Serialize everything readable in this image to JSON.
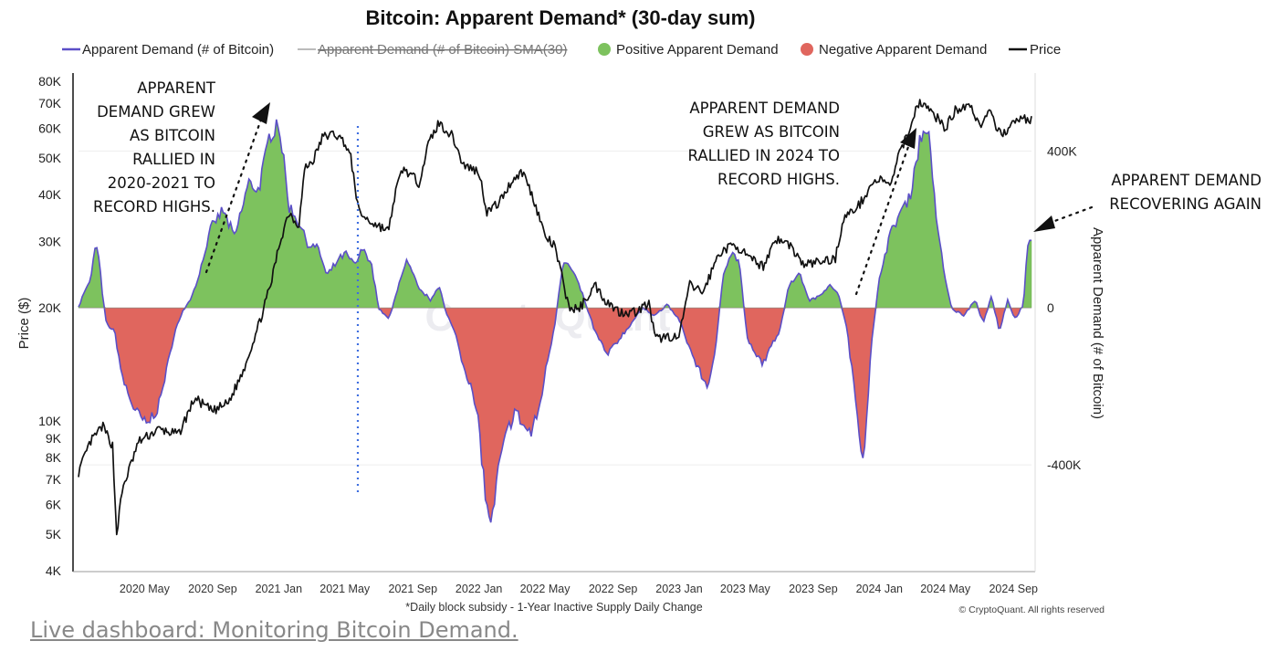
{
  "chart_data": {
    "type": "bar",
    "title": "Bitcoin: Apparent Demand* (30-day sum)",
    "legend": [
      {
        "label": "Apparent Demand (# of Bitcoin)",
        "color": "#5b4fc7",
        "marker": "line"
      },
      {
        "label": "Apparent Demand (# of Bitcoin) SMA(30)",
        "color": "#bbbbbb",
        "marker": "line",
        "hidden": true
      },
      {
        "label": "Positive Apparent Demand",
        "color": "#7dc25e",
        "marker": "dot"
      },
      {
        "label": "Negative Apparent Demand",
        "color": "#e0665e",
        "marker": "dot"
      },
      {
        "label": "Price",
        "color": "#111111",
        "marker": "line"
      }
    ],
    "ylabel_left": "Price ($)",
    "ylabel_right": "Apparent Demand (# of Bitcoin)",
    "y_left_scale": "log",
    "y_left_range": [
      4000,
      80000
    ],
    "y_left_ticks": [
      {
        "value": 80000,
        "label": "80K"
      },
      {
        "value": 70000,
        "label": "70K"
      },
      {
        "value": 60000,
        "label": "60K"
      },
      {
        "value": 50000,
        "label": "50K"
      },
      {
        "value": 40000,
        "label": "40K"
      },
      {
        "value": 30000,
        "label": "30K"
      },
      {
        "value": 20000,
        "label": "20K"
      },
      {
        "value": 10000,
        "label": "10K"
      },
      {
        "value": 9000,
        "label": "9K"
      },
      {
        "value": 8000,
        "label": "8K"
      },
      {
        "value": 7000,
        "label": "7K"
      },
      {
        "value": 6000,
        "label": "6K"
      },
      {
        "value": 5000,
        "label": "5K"
      },
      {
        "value": 4000,
        "label": "4K"
      }
    ],
    "y_right_range": [
      -700000,
      580000
    ],
    "y_right_ticks": [
      {
        "value": 400000,
        "label": "400K"
      },
      {
        "value": 0,
        "label": "0"
      },
      {
        "value": -400000,
        "label": "-400K"
      }
    ],
    "x_start": 2020.0,
    "x_end": 2024.76,
    "x_ticks": [
      {
        "value": 2020.33,
        "label": "2020 May"
      },
      {
        "value": 2020.67,
        "label": "2020 Sep"
      },
      {
        "value": 2021.0,
        "label": "2021 Jan"
      },
      {
        "value": 2021.33,
        "label": "2021 May"
      },
      {
        "value": 2021.67,
        "label": "2021 Sep"
      },
      {
        "value": 2022.0,
        "label": "2022 Jan"
      },
      {
        "value": 2022.33,
        "label": "2022 May"
      },
      {
        "value": 2022.67,
        "label": "2022 Sep"
      },
      {
        "value": 2023.0,
        "label": "2023 Jan"
      },
      {
        "value": 2023.33,
        "label": "2023 May"
      },
      {
        "value": 2023.67,
        "label": "2023 Sep"
      },
      {
        "value": 2024.0,
        "label": "2024 Jan"
      },
      {
        "value": 2024.33,
        "label": "2024 May"
      },
      {
        "value": 2024.67,
        "label": "2024 Sep"
      }
    ],
    "price_series": [
      [
        2020.0,
        7300
      ],
      [
        2020.06,
        8800
      ],
      [
        2020.12,
        9700
      ],
      [
        2020.17,
        8600
      ],
      [
        2020.19,
        5000
      ],
      [
        2020.22,
        6600
      ],
      [
        2020.3,
        8800
      ],
      [
        2020.4,
        9500
      ],
      [
        2020.5,
        9200
      ],
      [
        2020.58,
        11500
      ],
      [
        2020.67,
        10600
      ],
      [
        2020.75,
        11200
      ],
      [
        2020.82,
        13500
      ],
      [
        2020.9,
        18000
      ],
      [
        2020.96,
        23000
      ],
      [
        2021.0,
        29000
      ],
      [
        2021.05,
        36000
      ],
      [
        2021.1,
        33000
      ],
      [
        2021.13,
        47000
      ],
      [
        2021.17,
        49000
      ],
      [
        2021.22,
        57000
      ],
      [
        2021.28,
        58000
      ],
      [
        2021.33,
        55000
      ],
      [
        2021.36,
        50000
      ],
      [
        2021.4,
        36000
      ],
      [
        2021.45,
        34000
      ],
      [
        2021.5,
        33000
      ],
      [
        2021.55,
        32000
      ],
      [
        2021.58,
        40000
      ],
      [
        2021.62,
        47000
      ],
      [
        2021.7,
        43000
      ],
      [
        2021.75,
        55000
      ],
      [
        2021.8,
        62000
      ],
      [
        2021.87,
        57000
      ],
      [
        2021.92,
        48000
      ],
      [
        2022.0,
        46000
      ],
      [
        2022.04,
        36000
      ],
      [
        2022.1,
        38000
      ],
      [
        2022.17,
        44000
      ],
      [
        2022.22,
        46000
      ],
      [
        2022.28,
        38000
      ],
      [
        2022.33,
        31000
      ],
      [
        2022.38,
        29000
      ],
      [
        2022.45,
        20000
      ],
      [
        2022.5,
        19800
      ],
      [
        2022.58,
        23000
      ],
      [
        2022.63,
        21000
      ],
      [
        2022.7,
        19500
      ],
      [
        2022.78,
        19500
      ],
      [
        2022.85,
        20500
      ],
      [
        2022.88,
        16500
      ],
      [
        2022.95,
        16800
      ],
      [
        2023.0,
        16600
      ],
      [
        2023.05,
        23000
      ],
      [
        2023.12,
        22000
      ],
      [
        2023.2,
        28000
      ],
      [
        2023.28,
        29500
      ],
      [
        2023.35,
        27000
      ],
      [
        2023.42,
        25800
      ],
      [
        2023.48,
        30500
      ],
      [
        2023.55,
        29500
      ],
      [
        2023.62,
        26000
      ],
      [
        2023.7,
        26500
      ],
      [
        2023.78,
        27000
      ],
      [
        2023.82,
        34500
      ],
      [
        2023.9,
        37500
      ],
      [
        2023.96,
        42500
      ],
      [
        2024.0,
        44000
      ],
      [
        2024.05,
        42000
      ],
      [
        2024.1,
        51000
      ],
      [
        2024.16,
        62000
      ],
      [
        2024.2,
        71000
      ],
      [
        2024.25,
        67000
      ],
      [
        2024.3,
        63000
      ],
      [
        2024.33,
        60000
      ],
      [
        2024.38,
        67000
      ],
      [
        2024.45,
        70000
      ],
      [
        2024.5,
        61000
      ],
      [
        2024.55,
        66000
      ],
      [
        2024.6,
        58000
      ],
      [
        2024.65,
        60000
      ],
      [
        2024.7,
        64000
      ],
      [
        2024.76,
        63000
      ]
    ],
    "demand_series": [
      [
        2020.0,
        0
      ],
      [
        2020.02,
        30000
      ],
      [
        2020.06,
        70000
      ],
      [
        2020.08,
        150000
      ],
      [
        2020.1,
        140000
      ],
      [
        2020.12,
        30000
      ],
      [
        2020.14,
        -40000
      ],
      [
        2020.18,
        -60000
      ],
      [
        2020.22,
        -180000
      ],
      [
        2020.28,
        -260000
      ],
      [
        2020.34,
        -300000
      ],
      [
        2020.4,
        -250000
      ],
      [
        2020.44,
        -160000
      ],
      [
        2020.48,
        -60000
      ],
      [
        2020.52,
        -10000
      ],
      [
        2020.56,
        20000
      ],
      [
        2020.6,
        80000
      ],
      [
        2020.66,
        200000
      ],
      [
        2020.72,
        250000
      ],
      [
        2020.78,
        180000
      ],
      [
        2020.85,
        320000
      ],
      [
        2020.9,
        300000
      ],
      [
        2020.96,
        450000
      ],
      [
        2021.0,
        480000
      ],
      [
        2021.05,
        260000
      ],
      [
        2021.1,
        220000
      ],
      [
        2021.15,
        160000
      ],
      [
        2021.2,
        150000
      ],
      [
        2021.24,
        80000
      ],
      [
        2021.28,
        110000
      ],
      [
        2021.33,
        140000
      ],
      [
        2021.38,
        110000
      ],
      [
        2021.42,
        150000
      ],
      [
        2021.46,
        120000
      ],
      [
        2021.5,
        0
      ],
      [
        2021.55,
        -30000
      ],
      [
        2021.6,
        60000
      ],
      [
        2021.64,
        120000
      ],
      [
        2021.7,
        50000
      ],
      [
        2021.76,
        20000
      ],
      [
        2021.8,
        60000
      ],
      [
        2021.84,
        -20000
      ],
      [
        2021.88,
        -60000
      ],
      [
        2021.92,
        -140000
      ],
      [
        2021.96,
        -200000
      ],
      [
        2022.0,
        -300000
      ],
      [
        2022.04,
        -520000
      ],
      [
        2022.07,
        -540000
      ],
      [
        2022.1,
        -400000
      ],
      [
        2022.14,
        -320000
      ],
      [
        2022.18,
        -260000
      ],
      [
        2022.22,
        -300000
      ],
      [
        2022.26,
        -320000
      ],
      [
        2022.3,
        -260000
      ],
      [
        2022.34,
        -140000
      ],
      [
        2022.38,
        -40000
      ],
      [
        2022.42,
        120000
      ],
      [
        2022.46,
        100000
      ],
      [
        2022.5,
        60000
      ],
      [
        2022.54,
        0
      ],
      [
        2022.58,
        -60000
      ],
      [
        2022.64,
        -120000
      ],
      [
        2022.7,
        -80000
      ],
      [
        2022.76,
        -40000
      ],
      [
        2022.82,
        0
      ],
      [
        2022.88,
        -20000
      ],
      [
        2022.94,
        10000
      ],
      [
        2023.0,
        -30000
      ],
      [
        2023.05,
        -100000
      ],
      [
        2023.1,
        -160000
      ],
      [
        2023.14,
        -200000
      ],
      [
        2023.18,
        -120000
      ],
      [
        2023.22,
        90000
      ],
      [
        2023.26,
        140000
      ],
      [
        2023.3,
        120000
      ],
      [
        2023.34,
        -80000
      ],
      [
        2023.38,
        -120000
      ],
      [
        2023.42,
        -140000
      ],
      [
        2023.46,
        -100000
      ],
      [
        2023.5,
        -60000
      ],
      [
        2023.55,
        60000
      ],
      [
        2023.6,
        90000
      ],
      [
        2023.65,
        20000
      ],
      [
        2023.7,
        30000
      ],
      [
        2023.75,
        60000
      ],
      [
        2023.8,
        30000
      ],
      [
        2023.84,
        -60000
      ],
      [
        2023.88,
        -230000
      ],
      [
        2023.92,
        -390000
      ],
      [
        2023.96,
        -100000
      ],
      [
        2024.0,
        80000
      ],
      [
        2024.05,
        180000
      ],
      [
        2024.1,
        240000
      ],
      [
        2024.15,
        280000
      ],
      [
        2024.2,
        420000
      ],
      [
        2024.24,
        470000
      ],
      [
        2024.28,
        250000
      ],
      [
        2024.32,
        100000
      ],
      [
        2024.36,
        0
      ],
      [
        2024.42,
        -20000
      ],
      [
        2024.48,
        20000
      ],
      [
        2024.52,
        -40000
      ],
      [
        2024.56,
        30000
      ],
      [
        2024.6,
        -60000
      ],
      [
        2024.64,
        20000
      ],
      [
        2024.68,
        -30000
      ],
      [
        2024.72,
        10000
      ],
      [
        2024.74,
        160000
      ],
      [
        2024.76,
        180000
      ]
    ],
    "annotations": [
      {
        "lines": [
          "APPARENT",
          "DEMAND GREW",
          "AS BITCOIN",
          "RALLIED IN",
          "2020-2021 TO",
          "RECORD HIGHS."
        ]
      },
      {
        "lines": [
          "APPARENT DEMAND",
          "GREW AS BITCOIN",
          "RALLIED IN 2024 TO",
          "RECORD HIGHS."
        ]
      },
      {
        "lines": [
          "APPARENT DEMAND",
          "RECOVERING AGAIN"
        ]
      }
    ],
    "footnote": "*Daily block subsidy - 1-Year Inactive Supply Daily Change",
    "copyright": "© CryptoQuant. All rights reserved",
    "watermark": "CryptoQuant"
  },
  "link": {
    "text": "Live dashboard: Monitoring Bitcoin Demand."
  }
}
